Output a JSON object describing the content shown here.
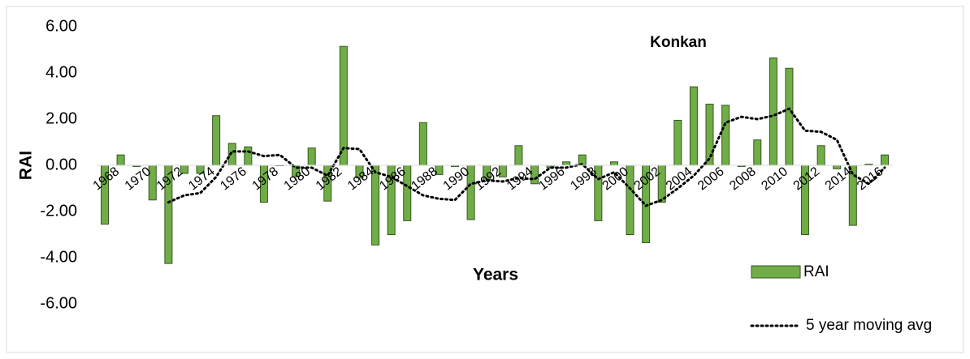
{
  "chart_data": {
    "type": "bar",
    "title": "Konkan",
    "x_label": "Years",
    "y_label": "RAI",
    "categories": [
      "1968",
      null,
      "1970",
      null,
      "1972",
      null,
      "1974",
      null,
      "1976",
      null,
      "1978",
      null,
      "1980",
      null,
      "1982",
      null,
      "1984",
      null,
      "1986",
      null,
      "1988",
      null,
      "1990",
      null,
      "1992",
      null,
      "1994",
      null,
      "1996",
      null,
      "1998",
      null,
      "2000",
      null,
      "2002",
      null,
      "2004",
      null,
      "2006",
      null,
      "2008",
      null,
      "2010",
      null,
      "2012",
      null,
      "2014",
      null,
      "2016",
      null
    ],
    "series": [
      {
        "name": "RAI",
        "type": "bar",
        "color": "#70ad47",
        "edge_color": "#375623",
        "values": [
          -2.55,
          0.45,
          -0.05,
          -1.5,
          -4.25,
          -0.35,
          -0.35,
          2.15,
          0.95,
          0.8,
          -1.6,
          0.0,
          -0.5,
          0.75,
          -1.55,
          5.15,
          -0.55,
          -3.45,
          -3.0,
          -2.4,
          1.85,
          -0.4,
          -0.05,
          -2.35,
          -0.6,
          -0.5,
          0.85,
          -0.8,
          -0.1,
          0.15,
          0.45,
          -2.4,
          0.15,
          -3.0,
          -3.35,
          -1.6,
          1.95,
          3.4,
          2.65,
          2.6,
          -0.05,
          1.1,
          4.65,
          4.2,
          -3.0,
          0.85,
          -0.15,
          -2.6,
          0.05,
          0.45
        ]
      },
      {
        "name": "5 year moving avg",
        "type": "line",
        "color": "#000000",
        "values": [
          null,
          null,
          null,
          null,
          -1.6,
          -1.3,
          -1.2,
          -0.5,
          0.6,
          0.6,
          0.4,
          0.45,
          -0.1,
          -0.1,
          -0.45,
          0.75,
          0.7,
          -0.3,
          -0.5,
          -0.9,
          -1.3,
          -1.45,
          -1.5,
          -0.8,
          -0.65,
          -0.7,
          -0.55,
          -0.6,
          -0.1,
          -0.1,
          0.05,
          -0.6,
          -0.3,
          -1.0,
          -1.75,
          -1.5,
          -1.0,
          -0.45,
          0.3,
          1.85,
          2.1,
          2.0,
          2.15,
          2.45,
          1.5,
          1.45,
          1.1,
          -0.4,
          -0.8,
          -0.1
        ]
      }
    ],
    "ylim": [
      -6,
      6
    ],
    "yticks": [
      {
        "value": 6,
        "label": "6.00"
      },
      {
        "value": 4,
        "label": "4.00"
      },
      {
        "value": 2,
        "label": "2.00"
      },
      {
        "value": 0,
        "label": "0.00"
      },
      {
        "value": -2,
        "label": "-2.00"
      },
      {
        "value": -4,
        "label": "-4.00"
      },
      {
        "value": -6,
        "label": "-6.00"
      }
    ],
    "grid": false
  }
}
